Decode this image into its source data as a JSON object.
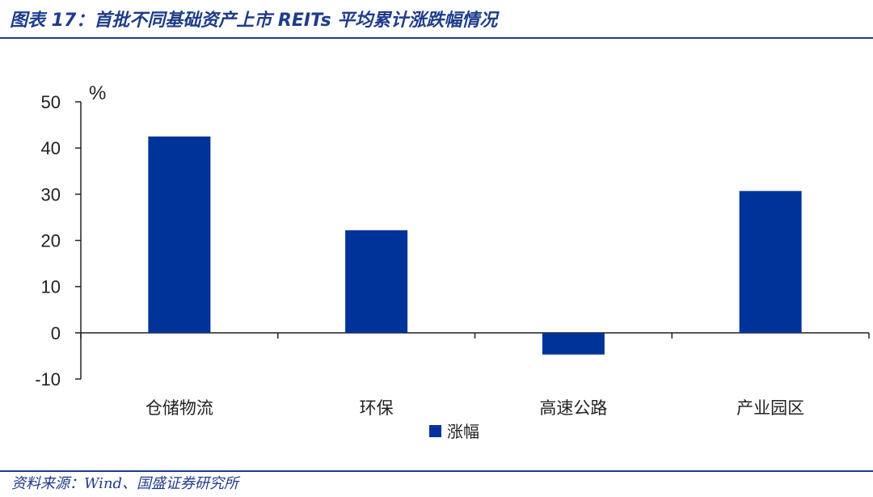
{
  "header": {
    "title": "图表 17：首批不同基础资产上市 REITs 平均累计涨跌幅情况"
  },
  "footer": {
    "source": "资料来源：Wind、国盛证券研究所"
  },
  "chart_data": {
    "type": "bar",
    "categories": [
      "仓储物流",
      "环保",
      "高速公路",
      "产业园区"
    ],
    "series": [
      {
        "name": "涨幅",
        "values": [
          42.5,
          22.2,
          -4.7,
          30.7
        ],
        "color": "#003399"
      }
    ],
    "unit": "%",
    "ylim": [
      -10,
      50
    ],
    "yticks": [
      50,
      40,
      30,
      20,
      10,
      0,
      -10
    ],
    "legend_position": "bottom",
    "grid": false
  },
  "colors": {
    "accent": "#1a3e8f",
    "bar": "#003399"
  }
}
